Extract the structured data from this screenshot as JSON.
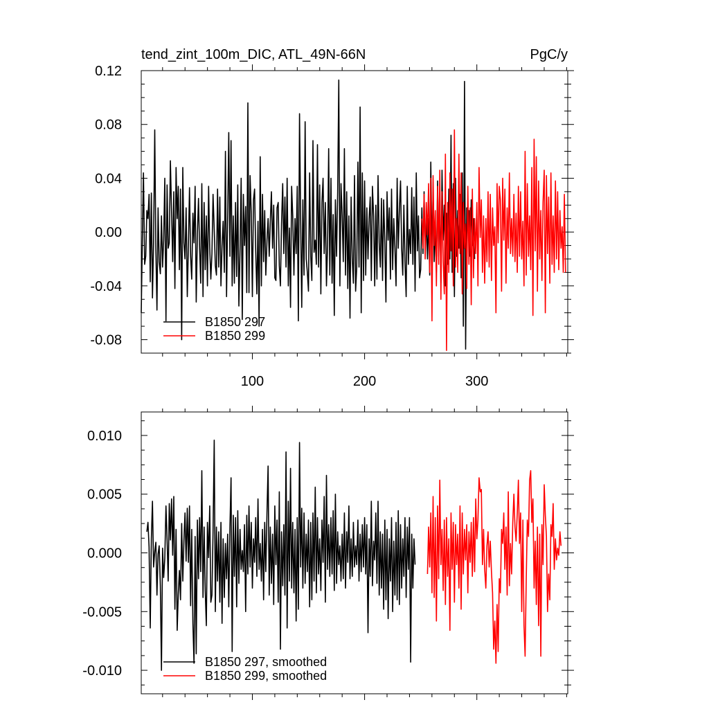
{
  "colors": {
    "run_297": "#000000",
    "run_299": "#ff0000",
    "axis": "#000000"
  },
  "chart_data": [
    {
      "type": "line",
      "title": "tend_zint_100m_DIC, ATL_49N-66N",
      "units": "PgC/y",
      "xlim": [
        1,
        381
      ],
      "ylim": [
        -0.09,
        0.12
      ],
      "xticks": [
        100,
        200,
        300
      ],
      "yticks": [
        -0.08,
        -0.04,
        0.0,
        0.04,
        0.08,
        0.12
      ],
      "ytick_labels": [
        "-0.08",
        "-0.04",
        "0.00",
        "0.04",
        "0.08",
        "0.12"
      ],
      "grid": false,
      "legend_position": "bottom-left",
      "series": [
        {
          "name": "B1850 297",
          "color": "#000000",
          "x_start": 1,
          "values": [
            -0.06,
            -0.005,
            0.044,
            -0.024,
            -0.018,
            0.016,
            0.01,
            0.028,
            -0.037,
            0.029,
            -0.049,
            -0.008,
            0.076,
            -0.012,
            -0.058,
            0.018,
            -0.022,
            -0.031,
            0.012,
            -0.026,
            -0.006,
            0.04,
            -0.066,
            0.035,
            -0.012,
            -0.008,
            0.053,
            0.015,
            -0.022,
            0.03,
            -0.042,
            0.048,
            0.01,
            0.034,
            -0.028,
            0.032,
            -0.08,
            0.048,
            -0.008,
            -0.02,
            0.018,
            -0.048,
            -0.01,
            0.033,
            -0.018,
            -0.035,
            0.014,
            -0.008,
            0.034,
            -0.052,
            -0.001,
            0.025,
            -0.012,
            -0.038,
            0.036,
            -0.048,
            0.022,
            -0.028,
            0.012,
            -0.04,
            0.034,
            -0.012,
            -0.035,
            -0.016,
            0.028,
            0.002,
            -0.025,
            -0.032,
            0.032,
            -0.026,
            0.026,
            -0.04,
            -0.01,
            0.008,
            -0.03,
            0.06,
            -0.048,
            0.01,
            0.074,
            -0.018,
            0.068,
            -0.04,
            0.012,
            -0.038,
            0.022,
            -0.033,
            0.035,
            -0.055,
            -0.012,
            0.04,
            -0.065,
            0.028,
            -0.01,
            0.019,
            -0.045,
            0.096,
            -0.045,
            0.042,
            0.014,
            -0.048,
            0.024,
            0.032,
            -0.014,
            -0.046,
            0.008,
            -0.07,
            0.056,
            -0.04,
            0.028,
            -0.022,
            0.016,
            -0.032,
            -0.006,
            0.01,
            -0.018,
            0.008,
            0.03,
            -0.012,
            0.02,
            -0.034,
            -0.036,
            0.018,
            0.022,
            -0.025,
            -0.04,
            0.006,
            0.036,
            -0.016,
            0.026,
            -0.026,
            0.04,
            -0.04,
            0.003,
            -0.056,
            0.034,
            0.012,
            -0.032,
            0.01,
            -0.016,
            0.034,
            -0.066,
            0.088,
            0.01,
            -0.056,
            0.024,
            -0.032,
            0.082,
            -0.02,
            -0.03,
            -0.044,
            0.044,
            -0.018,
            -0.036,
            0.068,
            -0.015,
            -0.006,
            -0.024,
            0.065,
            -0.026,
            0.035,
            -0.046,
            0.022,
            0.04,
            -0.016,
            0.022,
            -0.04,
            -0.01,
            0.062,
            -0.032,
            0.04,
            -0.038,
            0.013,
            -0.062,
            0.024,
            -0.018,
            0.03,
            0.113,
            -0.04,
            0.036,
            0.012,
            -0.022,
            0.062,
            -0.032,
            0.03,
            -0.042,
            0.012,
            -0.064,
            0.026,
            -0.02,
            -0.038,
            0.042,
            -0.044,
            -0.026,
            0.052,
            -0.026,
            0.093,
            -0.06,
            0.044,
            -0.036,
            0.038,
            -0.032,
            0.018,
            -0.02,
            0.01,
            0.026,
            -0.036,
            0.034,
            0.012,
            -0.04,
            0.02,
            -0.035,
            0.042,
            -0.008,
            -0.026,
            0.025,
            -0.036,
            0.024,
            -0.008,
            -0.052,
            0.03,
            -0.006,
            0.018,
            -0.035,
            0.032,
            -0.028,
            0.01,
            -0.012,
            -0.04,
            0.04,
            -0.012,
            0.016,
            0.038,
            -0.012,
            -0.032,
            0.02,
            -0.022,
            -0.048,
            0.034,
            -0.024,
            0.002,
            -0.016,
            0.033,
            -0.024,
            0.026,
            -0.044,
            0.044,
            -0.014,
            0.012,
            -0.034,
            -0.028,
            0.018,
            -0.016,
            0.03,
            -0.012,
            0.008,
            -0.02,
            0.01,
            -0.032,
            0.052,
            -0.016,
            0.03,
            -0.022,
            0.006,
            -0.03,
            0.038,
            -0.018,
            0.026,
            -0.038,
            0.046,
            -0.006,
            0.02,
            -0.04,
            0.014,
            -0.024,
            0.032,
            -0.02,
            0.072,
            -0.03,
            0.036,
            -0.048,
            0.04,
            -0.018,
            0.016,
            -0.012,
            0.028,
            -0.034,
            0.044,
            -0.07,
            0.112,
            -0.087,
            0.018,
            0.006,
            0.016,
            -0.018,
            0.024,
            -0.01,
            0.01,
            -0.02
          ]
        },
        {
          "name": "B1850 299",
          "color": "#ff0000",
          "x_start": 251,
          "values": [
            0.01,
            -0.012,
            0.028,
            -0.02,
            0.022,
            -0.002,
            0.036,
            -0.03,
            0.04,
            -0.066,
            0.042,
            -0.01,
            0.016,
            -0.04,
            0.034,
            -0.024,
            0.046,
            -0.05,
            0.03,
            -0.022,
            -0.046,
            0.058,
            -0.088,
            0.022,
            -0.03,
            0.044,
            -0.014,
            0.032,
            -0.04,
            0.076,
            -0.026,
            0.01,
            -0.03,
            0.058,
            -0.016,
            0.044,
            -0.046,
            0.022,
            -0.012,
            0.006,
            -0.042,
            0.034,
            -0.024,
            0.018,
            -0.054,
            0.032,
            -0.034,
            0.01,
            -0.016,
            0.022,
            -0.04,
            0.048,
            -0.004,
            0.024,
            -0.03,
            0.012,
            -0.038,
            0.01,
            -0.022,
            0.03,
            -0.026,
            0.028,
            -0.036,
            0.018,
            -0.01,
            0.004,
            -0.06,
            0.036,
            -0.008,
            0.034,
            0.024,
            -0.044,
            0.04,
            -0.006,
            0.032,
            -0.038,
            0.018,
            -0.012,
            0.044,
            -0.016,
            0.01,
            -0.018,
            0.028,
            -0.022,
            0.014,
            -0.03,
            0.034,
            -0.018,
            0.03,
            -0.02,
            0.008,
            -0.04,
            0.06,
            -0.032,
            0.036,
            -0.018,
            0.012,
            -0.028,
            0.048,
            -0.062,
            0.069,
            -0.014,
            0.056,
            -0.044,
            0.038,
            -0.02,
            0.016,
            -0.036,
            0.022,
            0.046,
            -0.06,
            0.042,
            -0.016,
            0.026,
            -0.038,
            0.044,
            -0.024,
            0.012,
            -0.03,
            0.038,
            -0.02,
            0.03,
            -0.028,
            0.016,
            -0.012,
            0.004,
            -0.03,
            0.028,
            -0.03
          ]
        }
      ]
    },
    {
      "type": "line",
      "title": "",
      "xlim": [
        1,
        381
      ],
      "ylim": [
        -0.012,
        0.012
      ],
      "xticks": [
        100,
        200,
        300
      ],
      "yticks": [
        -0.01,
        -0.005,
        0.0,
        0.005,
        0.01
      ],
      "ytick_labels": [
        "-0.010",
        "-0.005",
        "0.000",
        "0.005",
        "0.010"
      ],
      "grid": false,
      "legend_position": "bottom-left",
      "series": [
        {
          "name": "B1850 297, smoothed",
          "color": "#000000",
          "x_start": 6,
          "values": [
            0.0018,
            0.0026,
            0.0005,
            -0.0064,
            0.0012,
            0.0044,
            -0.0012,
            0.0001,
            0.0009,
            -0.0036,
            -0.0001,
            0.0006,
            -0.0028,
            -0.01,
            0.0004,
            -0.0021,
            -0.0005,
            0.004,
            0.0012,
            -0.0024,
            0.0042,
            0.0011,
            0.0046,
            -0.0002,
            0.0048,
            -0.0048,
            0.002,
            -0.0066,
            -0.0035,
            -0.0015,
            -0.004,
            0.0025,
            -0.0024,
            0.001,
            0.0034,
            -0.0007,
            0.0038,
            -0.0008,
            0.004,
            -0.0045,
            0.002,
            -0.006,
            -0.0094,
            0.0014,
            -0.0086,
            0.0028,
            -0.0022,
            0.003,
            -0.0016,
            0.007,
            -0.0038,
            0.0022,
            -0.0032,
            -0.0062,
            0.0026,
            -0.0004,
            0.004,
            -0.0042,
            -0.0036,
            0.0018,
            0.0096,
            -0.005,
            0.0022,
            -0.0024,
            0.0018,
            -0.0042,
            0.0026,
            -0.006,
            0.0012,
            -0.0038,
            0.0008,
            -0.0022,
            0.0016,
            -0.0046,
            0.0022,
            0.0064,
            -0.0084,
            0.0032,
            -0.002,
            0.003,
            -0.0046,
            0.0036,
            -0.0026,
            0.002,
            -0.0014,
            0.0002,
            -0.0016,
            0.0024,
            -0.005,
            0.0032,
            -0.0018,
            0.004,
            -0.0012,
            0.0026,
            -0.003,
            0.0012,
            -0.0008,
            0.003,
            -0.002,
            0.0046,
            -0.0014,
            0.0008,
            -0.0024,
            0.002,
            -0.004,
            0.0026,
            -0.0016,
            0.0034,
            0.0074,
            -0.0036,
            0.0022,
            -0.0026,
            0.0016,
            -0.0044,
            0.004,
            -0.001,
            0.0028,
            -0.0042,
            0.0052,
            -0.0082,
            0.0018,
            -0.0028,
            0.0024,
            -0.0036,
            0.0086,
            -0.0064,
            0.0044,
            -0.0024,
            0.0072,
            -0.003,
            0.0026,
            -0.0034,
            0.002,
            -0.0058,
            0.003,
            -0.0048,
            0.0094,
            -0.0012,
            0.0038,
            -0.003,
            0.0034,
            -0.0026,
            0.0016,
            -0.0016,
            0.0028,
            -0.0046,
            0.0026,
            -0.004,
            0.0034,
            -0.0024,
            0.0056,
            -0.0034,
            0.003,
            -0.0018,
            0.0012,
            -0.0032,
            0.0028,
            -0.0008,
            0.0048,
            -0.0042,
            0.0066,
            -0.0014,
            0.0024,
            -0.002,
            0.003,
            -0.0018,
            0.0036,
            -0.0032,
            0.005,
            -0.0026,
            0.0018,
            -0.001,
            0.0006,
            -0.0024,
            0.0016,
            -0.0022,
            0.0034,
            -0.003,
            0.0018,
            -0.0008,
            0.004,
            -0.0022,
            0.0012,
            -0.002,
            0.0026,
            -0.0012,
            0.0006,
            -0.001,
            0.0028,
            -0.0024,
            0.0016,
            -0.0016,
            0.0024,
            -0.0012,
            0.003,
            -0.0018,
            0.0024,
            -0.0068,
            0.0012,
            -0.002,
            0.0044,
            -0.0028,
            0.001,
            -0.0006,
            0.0034,
            -0.0026,
            0.0044,
            -0.0036,
            0.0018,
            -0.003,
            0.0016,
            -0.0048,
            0.0028,
            -0.004,
            0.002,
            -0.0056,
            0.0012,
            -0.0024,
            0.003,
            -0.005,
            0.001,
            -0.0036,
            0.0026,
            -0.004,
            0.0036,
            -0.0044,
            0.0024,
            -0.003,
            0.0012,
            -0.002,
            0.003,
            -0.0038,
            0.0022,
            -0.0014,
            0.003,
            -0.0093,
            0.0016,
            -0.003,
            0.0012,
            -0.001
          ]
        },
        {
          "name": "B1850 299, smoothed",
          "color": "#ff0000",
          "x_start": 256,
          "values": [
            -0.0018,
            0.0022,
            -0.0012,
            0.0034,
            -0.0034,
            0.0048,
            -0.0038,
            0.003,
            -0.0058,
            0.004,
            -0.0022,
            0.0062,
            -0.001,
            0.002,
            -0.0032,
            0.0028,
            -0.0044,
            0.003,
            -0.002,
            0.0012,
            -0.0066,
            0.0034,
            -0.0014,
            0.0026,
            -0.0042,
            0.0024,
            -0.001,
            0.0016,
            -0.003,
            0.004,
            -0.0048,
            0.0034,
            -0.0018,
            0.002,
            -0.0006,
            0.0024,
            -0.0034,
            0.0018,
            -0.0008,
            0.0026,
            -0.002,
            0.003,
            -0.0016,
            0.0046,
            0.0012,
            0.0028,
            0.0064,
            0.0052,
            0.0054,
            -0.001,
            0.002,
            -0.0014,
            -0.003,
            0.0006,
            0.0018,
            -0.0012,
            0.001,
            -0.0016,
            -0.0034,
            -0.0082,
            -0.0058,
            -0.0094,
            -0.0044,
            -0.0084,
            -0.0022,
            -0.0034,
            0.002,
            0.0008,
            0.0034,
            -0.0014,
            0.0022,
            -0.0036,
            0.0052,
            -0.0028,
            0.0008,
            -0.0018,
            0.0026,
            0.005,
            0.0022,
            0.001,
            0.0034,
            0.0062,
            0.0008,
            0.0034,
            -0.005,
            0.0028,
            -0.0062,
            -0.0088,
            -0.0024,
            0.0028,
            0.0014,
            0.0062,
            0.007,
            0.0026,
            0.0046,
            -0.003,
            0.001,
            -0.0044,
            0.0022,
            -0.0062,
            0.0016,
            -0.0088,
            0.0024,
            -0.001,
            0.0058,
            0.0032,
            0.0014,
            -0.005,
            -0.0018,
            -0.004,
            0.0024,
            0.0014,
            0.0042,
            -0.0014,
            0.0012,
            -0.0006,
            0.0004,
            -0.0002,
            0.0018,
            0.0006
          ]
        }
      ]
    }
  ]
}
